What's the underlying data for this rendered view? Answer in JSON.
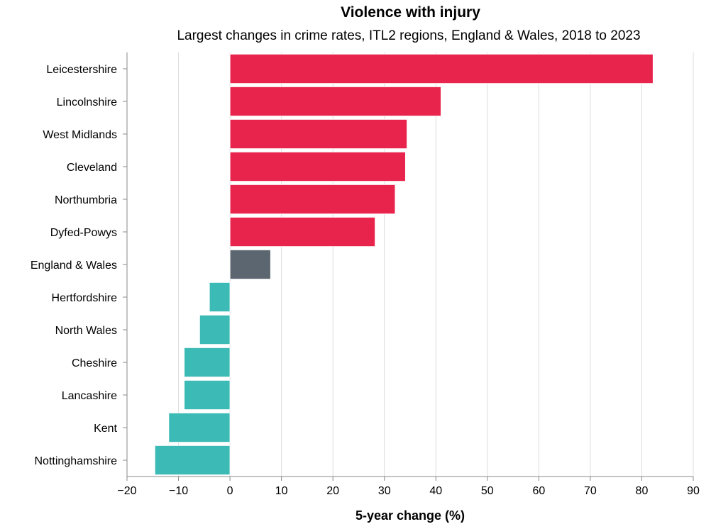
{
  "chart_data": {
    "type": "bar",
    "orientation": "horizontal",
    "title": "Violence with injury",
    "subtitle": "Largest changes in crime rates, ITL2 regions, England & Wales, 2018 to 2023",
    "xlabel": "5-year change (%)",
    "ylabel": "",
    "xlim": [
      -20,
      90
    ],
    "x_ticks": [
      -20,
      -10,
      0,
      10,
      20,
      30,
      40,
      50,
      60,
      70,
      80,
      90
    ],
    "x_tick_labels": [
      "−20",
      "−10",
      "0",
      "10",
      "20",
      "30",
      "40",
      "50",
      "60",
      "70",
      "80",
      "90"
    ],
    "grid": true,
    "categories": [
      "Leicestershire",
      "Lincolnshire",
      "West Midlands",
      "Cleveland",
      "Northumbria",
      "Dyfed-Powys",
      "England & Wales",
      "Hertfordshire",
      "North Wales",
      "Cheshire",
      "Lancashire",
      "Kent",
      "Nottinghamshire"
    ],
    "values": [
      82.2,
      41.0,
      34.4,
      34.1,
      32.1,
      28.2,
      7.9,
      -4.0,
      -5.9,
      -8.9,
      -8.9,
      -11.9,
      -14.6
    ],
    "colors": {
      "increase": "#E8234C",
      "average": "#5B6670",
      "decrease": "#3CBAB5",
      "axis": "#888888",
      "grid": "#DDDDDD"
    },
    "bar_groups": [
      "increase",
      "increase",
      "increase",
      "increase",
      "increase",
      "increase",
      "average",
      "decrease",
      "decrease",
      "decrease",
      "decrease",
      "decrease",
      "decrease"
    ]
  }
}
